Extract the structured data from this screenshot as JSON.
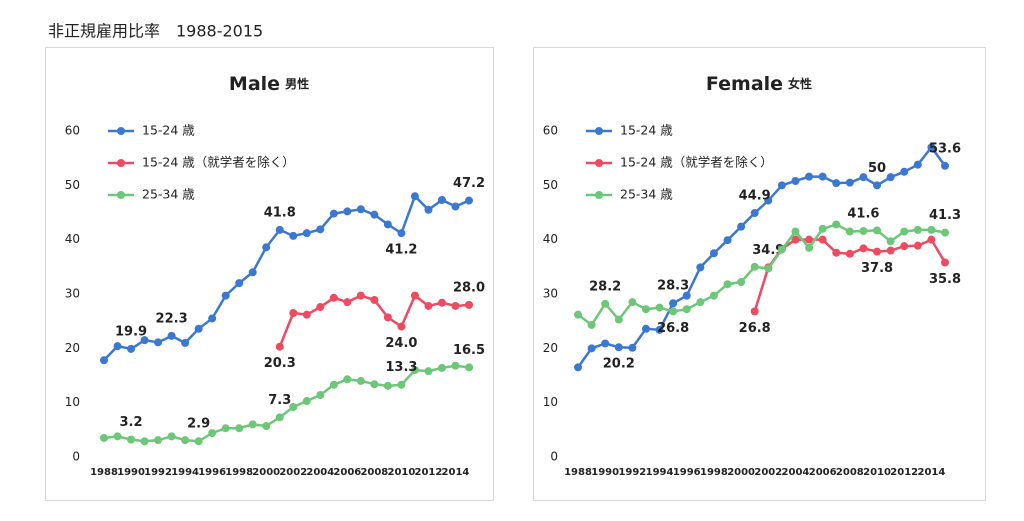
{
  "title": "非正規雇用比率　1988-2015",
  "chart_data": [
    {
      "type": "line",
      "title": "Male",
      "subtitle": "男性",
      "categories": [
        "1988",
        null,
        "1990",
        null,
        "1992",
        null,
        "1994",
        null,
        "1996",
        null,
        "1998",
        null,
        "2000",
        null,
        "2002",
        null,
        "2004",
        null,
        "2006",
        null,
        "2008",
        null,
        "2010",
        null,
        "2012",
        null,
        "2014",
        null
      ],
      "ylim": [
        0,
        60
      ],
      "yticks": [
        0,
        10,
        20,
        30,
        40,
        50,
        60
      ],
      "legend": "top-left",
      "series": [
        {
          "name": "15-24 歳",
          "color": "#3a78d2",
          "values": [
            17.8,
            20.4,
            19.9,
            21.5,
            21.1,
            22.3,
            21.0,
            23.6,
            25.5,
            29.7,
            32.0,
            34.0,
            38.6,
            41.8,
            40.7,
            41.2,
            41.9,
            44.8,
            45.2,
            45.6,
            44.6,
            42.8,
            41.2,
            48.0,
            45.5,
            47.3,
            46.1,
            47.2
          ],
          "value_labels": [
            null,
            null,
            "19.9",
            null,
            null,
            "22.3",
            null,
            null,
            null,
            null,
            null,
            null,
            null,
            "41.8",
            null,
            null,
            null,
            null,
            null,
            null,
            null,
            null,
            "41.2",
            null,
            null,
            null,
            null,
            "47.2"
          ]
        },
        {
          "name": "15-24 歳（就学者を除く）",
          "color": "#ee4a60",
          "values": [
            null,
            null,
            null,
            null,
            null,
            null,
            null,
            null,
            null,
            null,
            null,
            null,
            null,
            20.3,
            26.5,
            26.2,
            27.6,
            29.3,
            28.5,
            29.7,
            28.9,
            25.7,
            24.0,
            29.7,
            27.8,
            28.4,
            27.8,
            28.0
          ],
          "value_labels": [
            null,
            null,
            null,
            null,
            null,
            null,
            null,
            null,
            null,
            null,
            null,
            null,
            null,
            "20.3",
            null,
            null,
            null,
            null,
            null,
            null,
            null,
            null,
            "24.0",
            null,
            null,
            null,
            null,
            "28.0"
          ]
        },
        {
          "name": "25-34 歳",
          "color": "#6cc878",
          "values": [
            3.5,
            3.8,
            3.2,
            2.9,
            3.1,
            3.8,
            3.1,
            2.9,
            4.4,
            5.3,
            5.3,
            6.0,
            5.7,
            7.3,
            9.2,
            10.3,
            11.4,
            13.3,
            14.3,
            14.0,
            13.4,
            13.1,
            13.3,
            16.0,
            15.8,
            16.4,
            16.8,
            16.5
          ],
          "value_labels": [
            null,
            null,
            "3.2",
            null,
            null,
            null,
            null,
            "2.9",
            null,
            null,
            null,
            null,
            null,
            "7.3",
            null,
            null,
            null,
            null,
            null,
            null,
            null,
            null,
            "13.3",
            null,
            null,
            null,
            null,
            "16.5"
          ]
        }
      ]
    },
    {
      "type": "line",
      "title": "Female",
      "subtitle": "女性",
      "categories": [
        "1988",
        null,
        "1990",
        null,
        "1992",
        null,
        "1994",
        null,
        "1996",
        null,
        "1998",
        null,
        "2000",
        null,
        "2002",
        null,
        "2004",
        null,
        "2006",
        null,
        "2008",
        null,
        "2010",
        null,
        "2012",
        null,
        "2014",
        null
      ],
      "ylim": [
        0,
        60
      ],
      "yticks": [
        0,
        10,
        20,
        30,
        40,
        50,
        60
      ],
      "legend": "top-left",
      "series": [
        {
          "name": "15-24 歳",
          "color": "#3a78d2",
          "values": [
            16.5,
            20.0,
            20.9,
            20.2,
            20.1,
            23.6,
            23.4,
            28.3,
            29.7,
            34.9,
            37.5,
            39.9,
            42.4,
            44.9,
            47.2,
            50.0,
            50.8,
            51.6,
            51.6,
            50.4,
            50.5,
            51.5,
            50,
            51.5,
            52.5,
            53.8,
            57.0,
            53.6
          ],
          "value_labels": [
            null,
            null,
            null,
            "20.2",
            null,
            null,
            null,
            "28.3",
            null,
            null,
            null,
            null,
            null,
            "44.9",
            null,
            null,
            null,
            null,
            null,
            null,
            null,
            null,
            "50",
            null,
            null,
            null,
            null,
            "53.6"
          ]
        },
        {
          "name": "15-24 歳（就学者を除く）",
          "color": "#ee4a60",
          "values": [
            null,
            null,
            null,
            null,
            null,
            null,
            null,
            null,
            null,
            null,
            null,
            null,
            null,
            26.8,
            34.9,
            38.3,
            40.0,
            40.0,
            40.0,
            37.6,
            37.4,
            38.4,
            37.8,
            38.0,
            38.8,
            38.9,
            40.0,
            35.8
          ],
          "value_labels": [
            null,
            null,
            null,
            null,
            null,
            null,
            null,
            null,
            null,
            null,
            null,
            null,
            null,
            "26.8",
            "34.9",
            null,
            null,
            null,
            null,
            null,
            null,
            null,
            "37.8",
            null,
            null,
            null,
            null,
            "35.8"
          ]
        },
        {
          "name": "25-34 歳",
          "color": "#6cc878",
          "values": [
            26.2,
            24.3,
            28.2,
            25.3,
            28.5,
            27.2,
            27.5,
            26.8,
            27.2,
            28.5,
            29.7,
            31.8,
            32.2,
            35.0,
            34.7,
            38.2,
            41.5,
            38.5,
            42.0,
            42.8,
            41.5,
            41.6,
            41.7,
            39.7,
            41.5,
            41.8,
            41.8,
            41.3
          ],
          "value_labels": [
            null,
            null,
            "28.2",
            null,
            null,
            null,
            null,
            "26.8",
            null,
            null,
            null,
            null,
            null,
            null,
            null,
            null,
            null,
            null,
            null,
            null,
            null,
            "41.6",
            null,
            null,
            null,
            null,
            null,
            "41.3"
          ]
        }
      ]
    }
  ]
}
